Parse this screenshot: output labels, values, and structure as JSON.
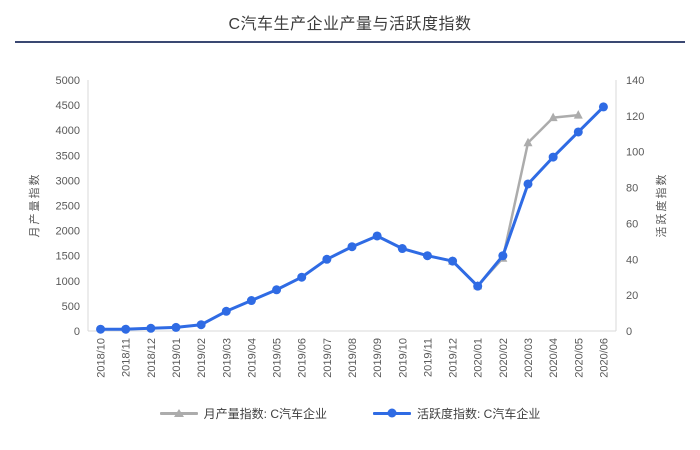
{
  "page": {
    "title": "C汽车生产企业产量与活跃度指数"
  },
  "colors": {
    "divider": "#3a4872",
    "production_series": "#ACACAC",
    "activity_series": "#2F6BE4",
    "axis_line": "#D9D9D9",
    "tick_text": "#595959"
  },
  "chart_data": {
    "type": "line",
    "title": "C汽车生产企业产量与活跃度指数",
    "categories": [
      "2018/10",
      "2018/11",
      "2018/12",
      "2019/01",
      "2019/02",
      "2019/03",
      "2019/04",
      "2019/05",
      "2019/06",
      "2019/07",
      "2019/08",
      "2019/09",
      "2019/10",
      "2019/11",
      "2019/12",
      "2020/01",
      "2020/02",
      "2020/03",
      "2020/04",
      "2020/05",
      "2020/06"
    ],
    "series": [
      {
        "name": "月产量指数: C汽车企业",
        "axis": "left",
        "color": "#ACACAC",
        "marker": "triangle",
        "values": [
          null,
          null,
          null,
          null,
          null,
          null,
          null,
          null,
          null,
          null,
          null,
          null,
          null,
          null,
          1390,
          900,
          1450,
          3750,
          4250,
          4300,
          null
        ]
      },
      {
        "name": "活跃度指数: C汽车企业",
        "axis": "right",
        "color": "#2F6BE4",
        "marker": "circle",
        "values": [
          1,
          1,
          1.5,
          2,
          3.5,
          11,
          17,
          23,
          30,
          40,
          47,
          53,
          46,
          42,
          39,
          25,
          42,
          82,
          97,
          111,
          125
        ]
      }
    ],
    "left_axis": {
      "title": "月产量指数",
      "min": 0,
      "max": 5000,
      "step": 500
    },
    "right_axis": {
      "title": "活跃度指数",
      "min": 0,
      "max": 140,
      "step": 20
    },
    "grid": false,
    "legend_position": "bottom"
  }
}
